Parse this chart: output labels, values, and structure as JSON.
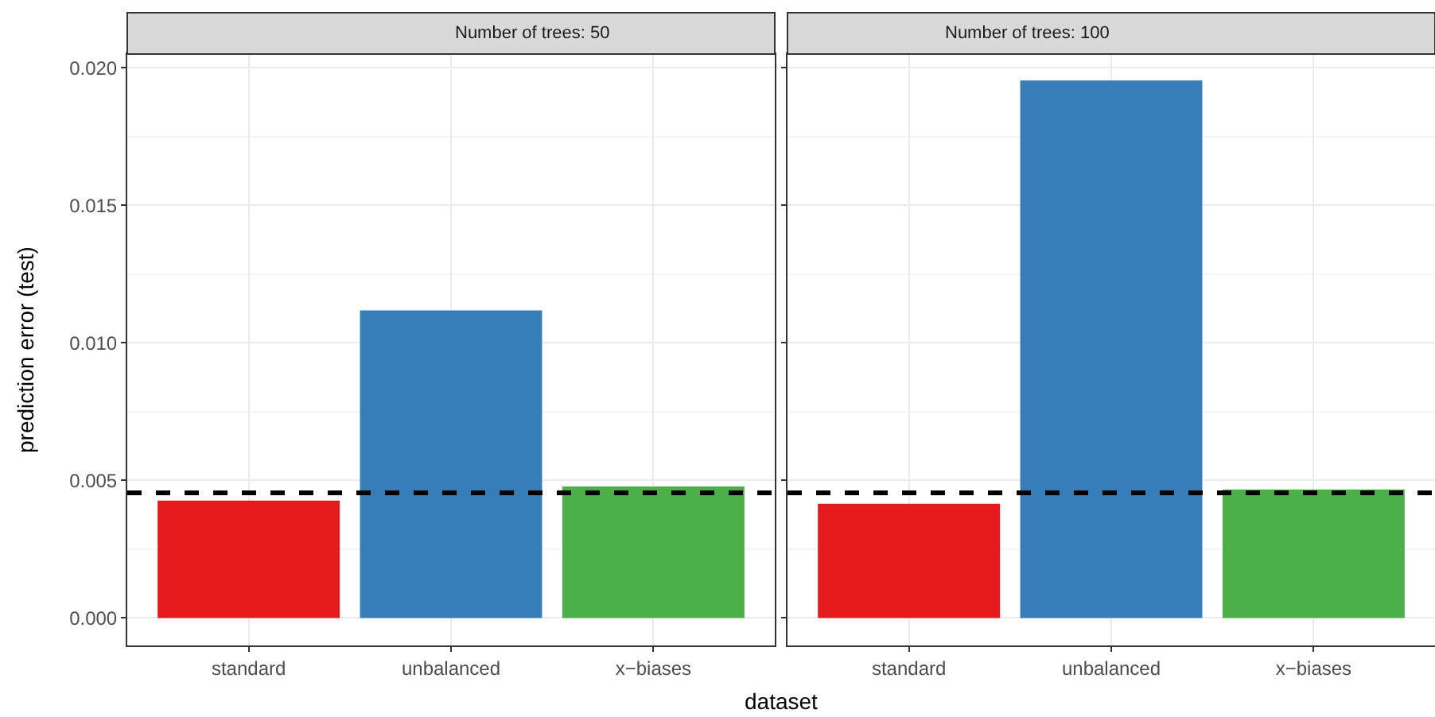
{
  "chart_data": [
    {
      "type": "bar",
      "title": "Number of trees: 50",
      "xlabel": "dataset",
      "ylabel": "prediction error (test)",
      "categories": [
        "standard",
        "unbalanced",
        "x−biases"
      ],
      "values": [
        0.00427,
        0.01118,
        0.00478
      ],
      "colors": [
        "#e41a1c",
        "#377eb8",
        "#4daf4a"
      ],
      "ylim": [
        -0.001,
        0.0205
      ],
      "yticks": [
        {
          "value": 0,
          "label": "0.000"
        },
        {
          "value": 0.005,
          "label": "0.005"
        },
        {
          "value": 0.01,
          "label": "0.010"
        },
        {
          "value": 0.015,
          "label": "0.015"
        },
        {
          "value": 0.02,
          "label": "0.020"
        }
      ],
      "grid": true,
      "ref_lines": [
        {
          "axis": "y",
          "value": 0.00455,
          "color": "#000000",
          "line_style": "dashed"
        }
      ]
    },
    {
      "type": "bar",
      "title": "Number of trees: 100",
      "categories": [
        "standard",
        "unbalanced",
        "x−biases"
      ],
      "values": [
        0.00415,
        0.01954,
        0.00467
      ],
      "colors": [
        "#e41a1c",
        "#377eb8",
        "#4daf4a"
      ],
      "ylim": [
        -0.001,
        0.0205
      ],
      "yticks": [
        {
          "value": 0,
          "label": null
        },
        {
          "value": 0.005,
          "label": null
        },
        {
          "value": 0.01,
          "label": null
        },
        {
          "value": 0.015,
          "label": null
        },
        {
          "value": 0.02,
          "label": null
        }
      ],
      "tick_labels": "x",
      "grid": true,
      "ref_lines": [
        {
          "axis": "y",
          "value": 0.00455,
          "color": "#000000",
          "line_style": "dashed"
        }
      ]
    }
  ]
}
